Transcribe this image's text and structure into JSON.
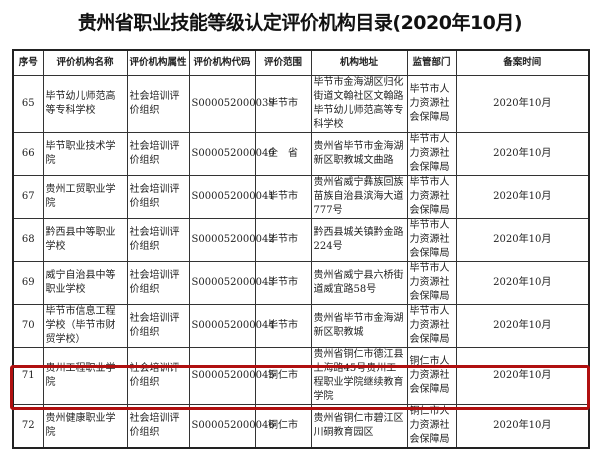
{
  "title": "贵州省职业技能等级认定评价机构目录(2020年10月)",
  "headers": [
    "序号",
    "评价机构名称",
    "评价机构属性",
    "评价机构代码",
    "评价范围",
    "机构地址",
    "监管部门",
    "备案时间"
  ],
  "rows": [
    [
      "65",
      "毕节幼儿师范高等专科学校",
      "社会培训评价组织",
      "S000052000039",
      "毕节市",
      "毕节市金海湖区归化街道文翰社区文翰路毕节幼儿师范高等专科学校",
      "毕节市人力资源社会保障局",
      "2020年10月"
    ],
    [
      "66",
      "毕节职业技术学院",
      "社会培训评价组织",
      "S000052000040",
      "全　省",
      "贵州省毕节市金海湖新区职教城文曲路",
      "毕节市人力资源社会保障局",
      "2020年10月"
    ],
    [
      "67",
      "贵州工贸职业学院",
      "社会培训评价组织",
      "S000052000041",
      "毕节市",
      "贵州省威宁彝族回族苗族自治县滨海大道777号",
      "毕节市人力资源社会保障局",
      "2020年10月"
    ],
    [
      "68",
      "黔西县中等职业学校",
      "社会培训评价组织",
      "S000052000042",
      "毕节市",
      "黔西县城关镇黔金路224号",
      "毕节市人力资源社会保障局",
      "2020年10月"
    ],
    [
      "69",
      "威宁自治县中等职业学校",
      "社会培训评价组织",
      "S000052000043",
      "毕节市",
      "贵州省威宁县六桥街道威宜路58号",
      "毕节市人力资源社会保障局",
      "2020年10月"
    ],
    [
      "70",
      "毕节市信息工程学校（毕节市财贸学校）",
      "社会培训评价组织",
      "S000052000044",
      "毕节市",
      "贵州省毕节市金海湖新区职教城",
      "毕节市人力资源社会保障局",
      "2020年10月"
    ],
    [
      "71",
      "贵州工程职业学院",
      "社会培训评价组织",
      "S000052000045",
      "铜仁市",
      "贵州省铜仁市德江县上海路45号贵州工程职业学院继续教育学院",
      "铜仁市人力资源社会保障局",
      "2020年10月"
    ],
    [
      "72",
      "贵州健康职业学院",
      "社会培训评价组织",
      "S000052000046",
      "铜仁市",
      "贵州省铜仁市碧江区川硐教育园区",
      "铜仁市人力资源社会保障局",
      "2020年10月"
    ]
  ],
  "highlight_row": "72",
  "highlight_color": "#b01010"
}
